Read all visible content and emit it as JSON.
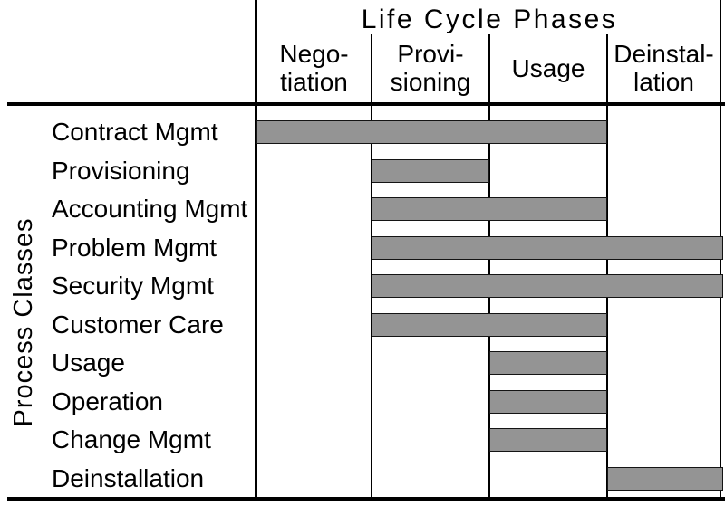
{
  "diagram": {
    "title": "Life Cycle Phases",
    "y_axis_label": "Process Classes",
    "phases": [
      {
        "label": "Nego-\ntiation"
      },
      {
        "label": "Provi-\nsioning"
      },
      {
        "label": "Usage"
      },
      {
        "label": "Deinstal-\nlation"
      }
    ],
    "processes": [
      {
        "label": "Contract Mgmt",
        "start_phase": "Negotiation",
        "end_phase": "Usage"
      },
      {
        "label": "Provisioning",
        "start_phase": "Provisioning",
        "end_phase": "Provisioning"
      },
      {
        "label": "Accounting Mgmt",
        "start_phase": "Provisioning",
        "end_phase": "Usage"
      },
      {
        "label": "Problem Mgmt",
        "start_phase": "Provisioning",
        "end_phase": "Deinstallation"
      },
      {
        "label": "Security Mgmt",
        "start_phase": "Provisioning",
        "end_phase": "Deinstallation"
      },
      {
        "label": "Customer Care",
        "start_phase": "Provisioning",
        "end_phase": "Usage"
      },
      {
        "label": "Usage",
        "start_phase": "Usage",
        "end_phase": "Usage"
      },
      {
        "label": "Operation",
        "start_phase": "Usage",
        "end_phase": "Usage"
      },
      {
        "label": "Change Mgmt",
        "start_phase": "Usage",
        "end_phase": "Usage"
      },
      {
        "label": "Deinstallation",
        "start_phase": "Deinstallation",
        "end_phase": "Deinstallation"
      }
    ],
    "colors": {
      "bar_fill": "#949494",
      "bar_border": "#141414",
      "line": "#000000",
      "background": "#ffffff"
    }
  }
}
